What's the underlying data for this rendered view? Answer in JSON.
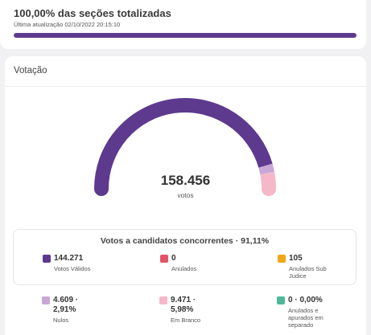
{
  "header": {
    "title": "100,00% das seções totalizadas",
    "updated": "Última atualização 02/10/2022 20:15:10",
    "progress": 1.0
  },
  "votacao": {
    "title": "Votação",
    "total": "158.456",
    "total_label": "votos",
    "gauge": {
      "segments": [
        {
          "name": "Votos Válidos",
          "fraction": 0.9109,
          "color": "#5d3a8e"
        },
        {
          "name": "Nulos",
          "fraction": 0.0291,
          "color": "#c8a7d6"
        },
        {
          "name": "Em Branco",
          "fraction": 0.0598,
          "color": "#f5b8c8"
        }
      ]
    },
    "concorrentes_title": "Votos a candidatos concorrentes · 91,11%",
    "items": [
      {
        "value": "144.271",
        "label": "Votos Válidos",
        "color": "#5d3a8e"
      },
      {
        "value": "0",
        "label": "Anulados",
        "color": "#e35466"
      },
      {
        "value": "105",
        "label": "Anulados Sub Judice",
        "color": "#f2a71b"
      },
      {
        "value": "4.609 ·",
        "value2": "2,91%",
        "label": "Nulos",
        "color": "#c8a7d6"
      },
      {
        "value": "9.471 ·",
        "value2": "5,98%",
        "label": "Em Branco",
        "color": "#f5b8c8"
      },
      {
        "value": "0 · 0,00%",
        "label": "Anulados e apurados em separado",
        "color": "#4db89a"
      }
    ]
  }
}
